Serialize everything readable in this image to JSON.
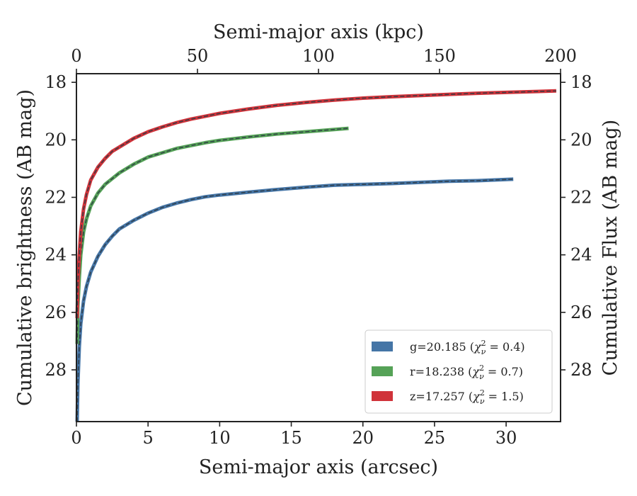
{
  "chart_data": {
    "type": "line",
    "title": "",
    "xlabel": "Semi-major axis (arcsec)",
    "ylabel": "Cumulative brightness (AB mag)",
    "x2label": "Semi-major axis (kpc)",
    "y2label": "Cumulative Flux (AB mag)",
    "xlim": [
      0,
      33.8
    ],
    "ylim": [
      29.8,
      17.7
    ],
    "x2lim": [
      0,
      200
    ],
    "y_inverted": true,
    "grid": false,
    "legend_position": "lower right",
    "xticks": [
      0,
      5,
      10,
      15,
      20,
      25,
      30
    ],
    "yticks": [
      18,
      20,
      22,
      24,
      26,
      28
    ],
    "x2ticks": [
      0,
      50,
      100,
      150,
      200
    ],
    "xtick_labels": [
      "0",
      "5",
      "10",
      "15",
      "20",
      "25",
      "30"
    ],
    "ytick_labels": [
      "18",
      "20",
      "22",
      "24",
      "26",
      "28"
    ],
    "x2tick_labels": [
      "0",
      "50",
      "100",
      "150",
      "200"
    ],
    "y2tick_labels": [
      "18",
      "20",
      "22",
      "24",
      "26",
      "28"
    ],
    "series": [
      {
        "name": "g=20.185 (χ²ᵥ = 0.4)",
        "legend_main": "g=20.185 (",
        "legend_sub": "ν",
        "legend_sup": "2",
        "legend_tail": " = 0.4)",
        "color": "#4575a6",
        "x": [
          0.05,
          0.1,
          0.2,
          0.3,
          0.5,
          0.7,
          1.0,
          1.5,
          2.0,
          2.5,
          3.0,
          4.0,
          5.0,
          6.0,
          7.0,
          8.0,
          9.0,
          10.0,
          12.0,
          14.0,
          16.0,
          18.0,
          20.0,
          22.0,
          24.0,
          26.0,
          28.0,
          30.5
        ],
        "y": [
          29.8,
          28.5,
          27.2,
          26.4,
          25.6,
          25.1,
          24.6,
          24.05,
          23.65,
          23.35,
          23.1,
          22.8,
          22.55,
          22.35,
          22.2,
          22.08,
          21.98,
          21.92,
          21.82,
          21.73,
          21.65,
          21.58,
          21.55,
          21.52,
          21.48,
          21.44,
          21.42,
          21.37
        ]
      },
      {
        "name": "r=18.238 (χ²ᵥ = 0.7)",
        "legend_main": "r=18.238 (",
        "legend_sub": "ν",
        "legend_sup": "2",
        "legend_tail": " = 0.7)",
        "color": "#55a257",
        "x": [
          0.05,
          0.1,
          0.2,
          0.3,
          0.5,
          0.7,
          1.0,
          1.5,
          2.0,
          2.5,
          3.0,
          4.0,
          5.0,
          6.0,
          7.0,
          8.0,
          9.0,
          10.0,
          12.0,
          14.0,
          16.0,
          18.0,
          19.0
        ],
        "y": [
          27.1,
          25.8,
          24.8,
          24.0,
          23.2,
          22.75,
          22.3,
          21.85,
          21.55,
          21.35,
          21.15,
          20.85,
          20.6,
          20.45,
          20.3,
          20.2,
          20.1,
          20.02,
          19.9,
          19.8,
          19.72,
          19.64,
          19.6
        ]
      },
      {
        "name": "z=17.257 (χ²ᵥ = 1.5)",
        "legend_main": "z=17.257 (",
        "legend_sub": "ν",
        "legend_sup": "2",
        "legend_tail": " = 1.5)",
        "color": "#d0333a",
        "x": [
          0.05,
          0.1,
          0.2,
          0.3,
          0.5,
          0.7,
          1.0,
          1.5,
          2.0,
          2.5,
          3.0,
          4.0,
          5.0,
          6.0,
          7.0,
          8.0,
          9.0,
          10.0,
          12.0,
          14.0,
          16.0,
          18.0,
          20.0,
          22.0,
          25.0,
          28.0,
          30.0,
          33.5
        ],
        "y": [
          26.2,
          25.0,
          24.0,
          23.2,
          22.4,
          21.9,
          21.4,
          20.95,
          20.65,
          20.4,
          20.25,
          19.95,
          19.72,
          19.55,
          19.4,
          19.28,
          19.18,
          19.08,
          18.93,
          18.8,
          18.7,
          18.62,
          18.55,
          18.5,
          18.44,
          18.38,
          18.35,
          18.3
        ]
      }
    ]
  }
}
